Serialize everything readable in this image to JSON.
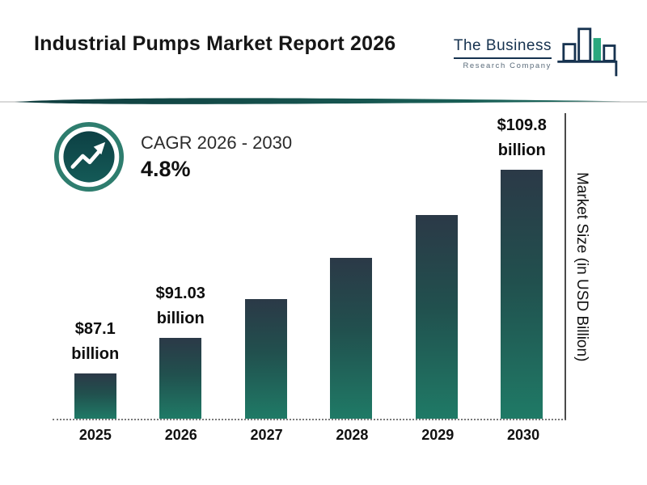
{
  "header": {
    "title": "Industrial Pumps Market Report 2026",
    "logo": {
      "line1": "The Business",
      "line2": "Research Company"
    }
  },
  "cagr": {
    "label": "CAGR 2026 - 2030",
    "value": "4.8%"
  },
  "chart_data": {
    "type": "bar",
    "title": "Industrial Pumps Market Report 2026",
    "categories": [
      "2025",
      "2026",
      "2027",
      "2028",
      "2029",
      "2030"
    ],
    "values": [
      87.1,
      91.03,
      95.4,
      100.0,
      104.8,
      109.8
    ],
    "data_labels": [
      {
        "value": "$87.1",
        "unit": "billion"
      },
      {
        "value": "$91.03",
        "unit": "billion"
      },
      null,
      null,
      null,
      {
        "value": "$109.8",
        "unit": "billion"
      }
    ],
    "xlabel": "",
    "ylabel": "Market Size (in USD Billion)",
    "ylim": [
      82,
      110
    ],
    "grid": false,
    "legend": false,
    "baseline_style": "dotted",
    "bar_gradient": [
      "#2b3947",
      "#1f7a66"
    ]
  },
  "icons": {
    "cagr_badge": "trending-up-arrow",
    "logo_mark": "bar-chart-logo"
  },
  "colors": {
    "accent_dark_teal": "#0f4346",
    "accent_teal": "#1f7a66",
    "navy": "#16324f",
    "logo_green": "#2aa87e",
    "text": "#111111"
  }
}
